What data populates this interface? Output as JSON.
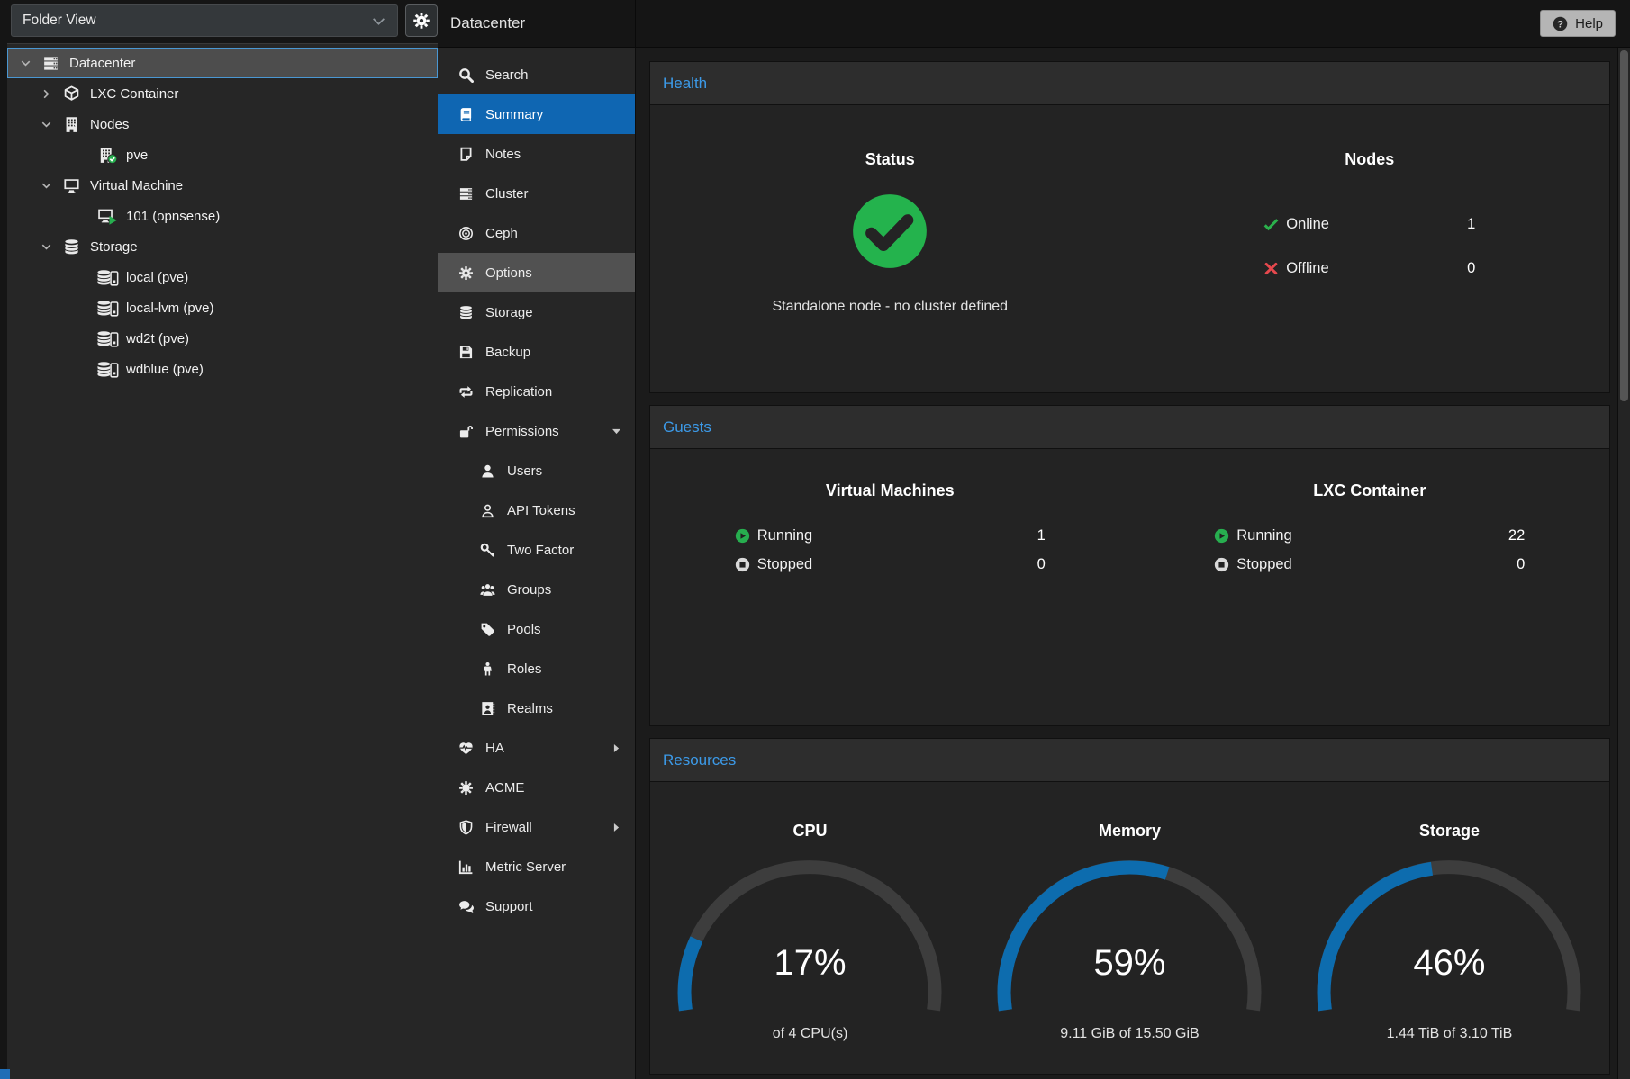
{
  "colors": {
    "accent": "#3c9ae8",
    "selection": "#0f66b2",
    "gauge_fill": "#0d6cae",
    "gauge_track": "#3d3d3d",
    "ok_green": "#27ae4f",
    "err_red": "#e5484d"
  },
  "left_panel": {
    "view_selector": "Folder View",
    "settings_icon": "gear",
    "tree": [
      {
        "label": "Datacenter",
        "depth": 0,
        "icon": "server-stack",
        "expand": "expanded",
        "selected": true
      },
      {
        "label": "LXC Container",
        "depth": 1,
        "icon": "cube",
        "expand": "collapsed"
      },
      {
        "label": "Nodes",
        "depth": 1,
        "icon": "building",
        "expand": "expanded"
      },
      {
        "label": "pve",
        "depth": 2,
        "icon": "building-check"
      },
      {
        "label": "Virtual Machine",
        "depth": 1,
        "icon": "monitor",
        "expand": "expanded"
      },
      {
        "label": "101 (opnsense)",
        "depth": 2,
        "icon": "monitor-play"
      },
      {
        "label": "Storage",
        "depth": 1,
        "icon": "database",
        "expand": "expanded"
      },
      {
        "label": "local (pve)",
        "depth": 2,
        "icon": "database-drive"
      },
      {
        "label": "local-lvm (pve)",
        "depth": 2,
        "icon": "database-drive"
      },
      {
        "label": "wd2t (pve)",
        "depth": 2,
        "icon": "database-drive"
      },
      {
        "label": "wdblue (pve)",
        "depth": 2,
        "icon": "database-drive"
      }
    ]
  },
  "header": {
    "title": "Datacenter",
    "help_label": "Help",
    "help_icon": "help"
  },
  "menu": [
    {
      "label": "Search",
      "icon": "search"
    },
    {
      "label": "Summary",
      "icon": "book",
      "selected": true
    },
    {
      "label": "Notes",
      "icon": "note"
    },
    {
      "label": "Cluster",
      "icon": "server-stack"
    },
    {
      "label": "Ceph",
      "icon": "ceph"
    },
    {
      "label": "Options",
      "icon": "gear",
      "highlighted": true
    },
    {
      "label": "Storage",
      "icon": "database"
    },
    {
      "label": "Backup",
      "icon": "floppy"
    },
    {
      "label": "Replication",
      "icon": "retweet"
    },
    {
      "label": "Permissions",
      "icon": "unlock",
      "arrow": "down"
    },
    {
      "label": "Users",
      "icon": "user",
      "sub": true
    },
    {
      "label": "API Tokens",
      "icon": "user-outline",
      "sub": true
    },
    {
      "label": "Two Factor",
      "icon": "key",
      "sub": true
    },
    {
      "label": "Groups",
      "icon": "users",
      "sub": true
    },
    {
      "label": "Pools",
      "icon": "tag",
      "sub": true
    },
    {
      "label": "Roles",
      "icon": "person",
      "sub": true
    },
    {
      "label": "Realms",
      "icon": "address-book",
      "sub": true
    },
    {
      "label": "HA",
      "icon": "heartbeat",
      "arrow": "right"
    },
    {
      "label": "ACME",
      "icon": "certificate"
    },
    {
      "label": "Firewall",
      "icon": "shield",
      "arrow": "right"
    },
    {
      "label": "Metric Server",
      "icon": "bar-chart"
    },
    {
      "label": "Support",
      "icon": "comments"
    }
  ],
  "health": {
    "section_title": "Health",
    "status_title": "Status",
    "status_icon": "check-circle",
    "status_text": "Standalone node - no cluster defined",
    "nodes_title": "Nodes",
    "node_rows": [
      {
        "icon": "check",
        "label": "Online",
        "value": "1"
      },
      {
        "icon": "cross",
        "label": "Offline",
        "value": "0"
      }
    ]
  },
  "guests": {
    "section_title": "Guests",
    "columns": [
      {
        "title": "Virtual Machines",
        "rows": [
          {
            "icon": "running",
            "label": "Running",
            "value": "1"
          },
          {
            "icon": "stopped",
            "label": "Stopped",
            "value": "0"
          }
        ]
      },
      {
        "title": "LXC Container",
        "rows": [
          {
            "icon": "running",
            "label": "Running",
            "value": "22"
          },
          {
            "icon": "stopped",
            "label": "Stopped",
            "value": "0"
          }
        ]
      }
    ]
  },
  "resources": {
    "section_title": "Resources",
    "gauges": [
      {
        "title": "CPU",
        "percent": 17,
        "display": "17%",
        "caption": "of 4 CPU(s)"
      },
      {
        "title": "Memory",
        "percent": 59,
        "display": "59%",
        "caption": "9.11 GiB of 15.50 GiB"
      },
      {
        "title": "Storage",
        "percent": 46,
        "display": "46%",
        "caption": "1.44 TiB of 3.10 TiB"
      }
    ]
  }
}
